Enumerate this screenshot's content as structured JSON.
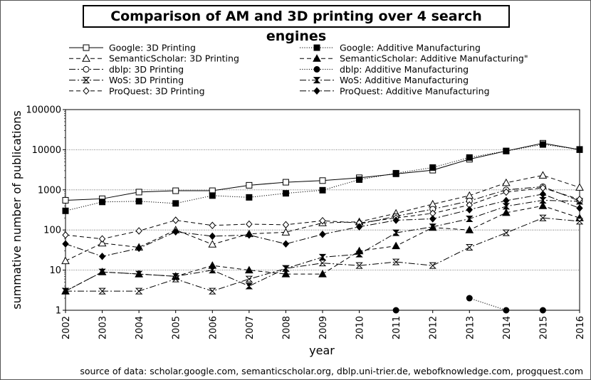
{
  "chart_data": {
    "type": "line",
    "title": "Comparison of AM and 3D printing over 4 search engines",
    "xlabel": "year",
    "ylabel": "summative number of publications",
    "yscale": "log",
    "ylim": [
      1,
      100000
    ],
    "yticks": [
      "1",
      "10",
      "100",
      "1000",
      "10000",
      "100000"
    ],
    "x": [
      "2002",
      "2003",
      "2004",
      "2005",
      "2006",
      "2007",
      "2008",
      "2009",
      "2010",
      "2011",
      "2012",
      "2013",
      "2014",
      "2015",
      "2016"
    ],
    "grid": "horizontal",
    "legend_position": "top",
    "series": [
      {
        "name": "Google: 3D Printing",
        "line": "solid",
        "marker": "square-open",
        "values": [
          550,
          600,
          880,
          950,
          950,
          1300,
          1550,
          1700,
          2000,
          2500,
          3100,
          5800,
          9300,
          14500,
          10000
        ]
      },
      {
        "name": "Google: Additive Manufacturing",
        "line": "dotted",
        "marker": "square-filled",
        "values": [
          300,
          500,
          520,
          460,
          720,
          650,
          820,
          980,
          1800,
          2600,
          3600,
          6400,
          9300,
          13500,
          10200
        ]
      },
      {
        "name": "SemanticScholar: 3D Printing",
        "line": "dashed",
        "marker": "triangle-open",
        "values": [
          17,
          47,
          37,
          100,
          44,
          80,
          88,
          150,
          160,
          260,
          440,
          720,
          1500,
          2300,
          1150
        ]
      },
      {
        "name": "SemanticScholar: Additive Manufacturing\"",
        "line": "dashed",
        "marker": "triangle-filled",
        "values": [
          3,
          9,
          8,
          7,
          13,
          10,
          8,
          8,
          30,
          40,
          115,
          100,
          270,
          400,
          200
        ]
      },
      {
        "name": "dblp: 3D Printing",
        "line": "dashdot",
        "marker": "circle-open",
        "values": [
          null,
          null,
          null,
          null,
          null,
          null,
          null,
          null,
          140,
          220,
          330,
          530,
          1000,
          1200,
          530
        ]
      },
      {
        "name": "dblp: Additive Manufacturing",
        "line": "dotted",
        "marker": "circle-filled",
        "values": [
          null,
          null,
          null,
          null,
          null,
          null,
          null,
          null,
          null,
          1,
          null,
          2,
          1,
          1,
          null
        ]
      },
      {
        "name": "WoS: 3D Printing",
        "line": "dashdot",
        "marker": "bowtie-open",
        "values": [
          3,
          3,
          3,
          6,
          3,
          6,
          11,
          15,
          13,
          16,
          13,
          37,
          85,
          200,
          165
        ]
      },
      {
        "name": "WoS: Additive Manufacturing",
        "line": "dashdot",
        "marker": "bowtie-filled",
        "values": [
          3,
          9,
          8,
          7,
          10,
          4,
          11,
          21,
          25,
          85,
          120,
          190,
          390,
          550,
          520
        ]
      },
      {
        "name": "ProQuest: 3D Printing",
        "line": "dashed",
        "marker": "diamond-open",
        "values": [
          75,
          60,
          95,
          175,
          130,
          140,
          135,
          170,
          150,
          200,
          260,
          420,
          880,
          1120,
          580
        ]
      },
      {
        "name": "ProQuest: Additive Manufacturing",
        "line": "dashdot",
        "marker": "diamond-filled",
        "values": [
          45,
          22,
          35,
          90,
          70,
          75,
          45,
          78,
          120,
          175,
          190,
          320,
          540,
          780,
          350
        ]
      }
    ]
  },
  "source_note": "source of data: scholar.google.com, semanticscholar.org, dblp.uni-trier.de, webofknowledge.com, progquest.com"
}
